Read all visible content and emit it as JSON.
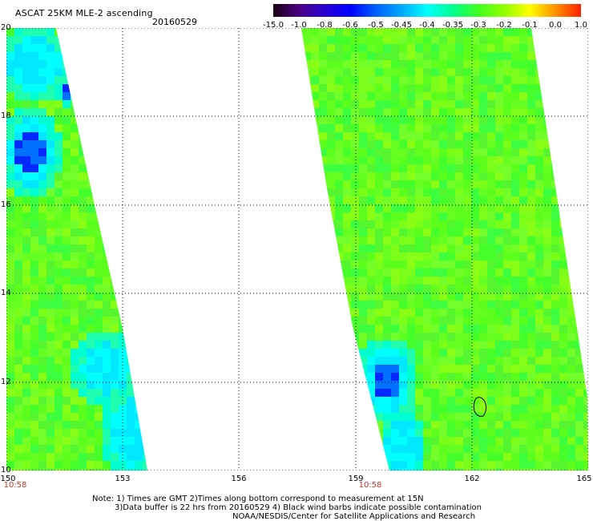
{
  "header": {
    "title": "ASCAT 25KM MLE-2 ascending",
    "date": "20160529"
  },
  "colorbar": {
    "labels": [
      "-15.0",
      "-1.0",
      "-0.8",
      "-0.6",
      "-0.5",
      "-0.45",
      "-0.4",
      "-0.35",
      "-0.3",
      "-0.2",
      "-0.1",
      "0.0",
      "1.0"
    ],
    "colors": [
      "#1a0010",
      "#4b0082",
      "#2a00d0",
      "#0000ff",
      "#0060ff",
      "#00a8ff",
      "#00ffff",
      "#00ff90",
      "#40ff20",
      "#90ff00",
      "#ffff00",
      "#ff9000",
      "#ff2000"
    ]
  },
  "map": {
    "lat_labels": [
      "20",
      "18",
      "16",
      "14",
      "12",
      "10"
    ],
    "lon_labels": [
      "150",
      "153",
      "156",
      "159",
      "162",
      "165"
    ],
    "lat_range": [
      10,
      20
    ],
    "lon_range": [
      150,
      165
    ],
    "swath_time_labels": [
      "10:58",
      "10:58"
    ],
    "colors": {
      "background": "#ffffff",
      "swath_base": "#66ff22",
      "low_mle": "#00ffff",
      "very_low_mle": "#0000ff",
      "grid": "#000000"
    }
  },
  "notes": {
    "line1": "Note: 1) Times are GMT 2)Times along bottom correspond to measurement at 15N",
    "line2": "3)Data buffer is 22 hrs from 20160529 4) Black wind barbs indicate possible contamination",
    "line3": "NOAA/NESDIS/Center for Satellite Applications and Research"
  }
}
